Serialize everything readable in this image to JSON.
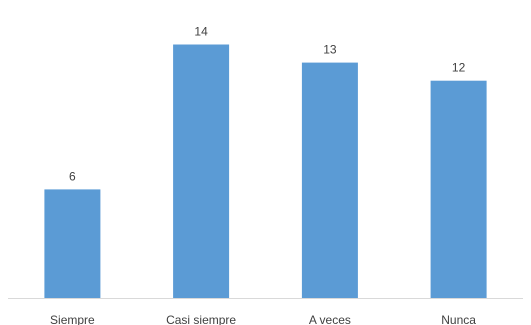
{
  "chart_data": {
    "type": "bar",
    "title": "",
    "xlabel": "",
    "ylabel": "",
    "categories": [
      "Siempre",
      "Casi siempre",
      "A veces",
      "Nunca"
    ],
    "values": [
      6,
      14,
      13,
      12
    ],
    "data_labels": [
      "6",
      "14",
      "13",
      "12"
    ],
    "ylim": [
      0,
      14.8
    ],
    "grid": false,
    "legend": "none",
    "colors": {
      "bar": "#5B9BD5",
      "axis": "#D9D9D9",
      "text": "#404040"
    }
  }
}
